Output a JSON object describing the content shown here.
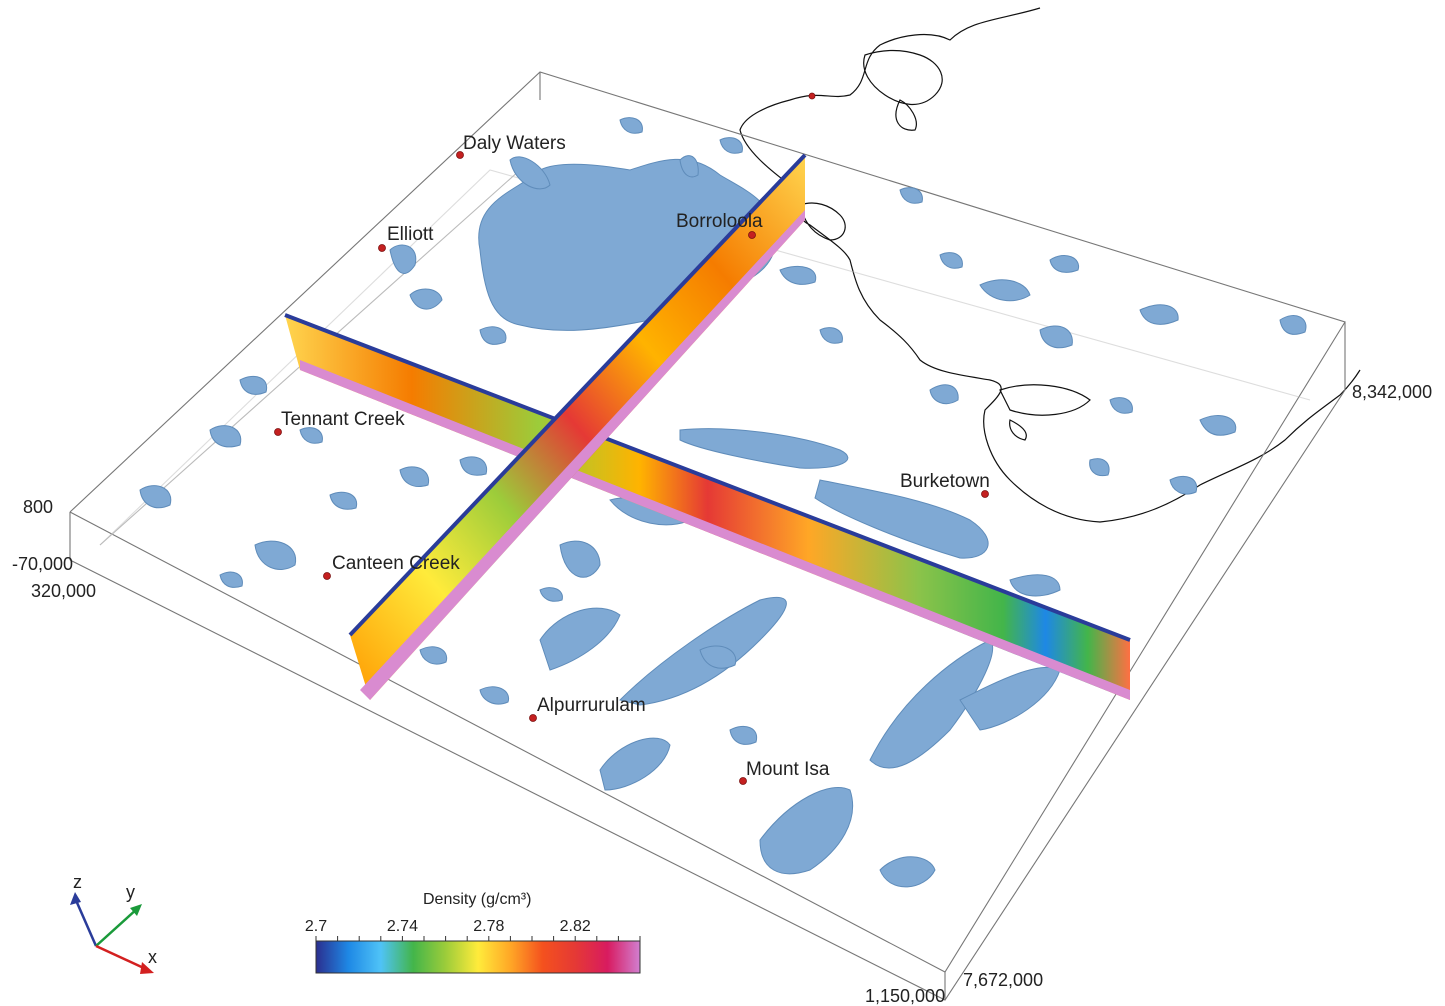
{
  "places": [
    {
      "name": "Daly Waters"
    },
    {
      "name": "Elliott"
    },
    {
      "name": "Borroloola"
    },
    {
      "name": "Tennant Creek"
    },
    {
      "name": "Burketown"
    },
    {
      "name": "Canteen Creek"
    },
    {
      "name": "Alpurrurulam"
    },
    {
      "name": "Mount Isa"
    }
  ],
  "axis_labels": {
    "z_top": "800",
    "z_bottom": "-70,000",
    "x_min": "320,000",
    "x_max": "1,150,000",
    "y_min": "7,672,000",
    "y_max": "8,342,000"
  },
  "triad": {
    "z": "z",
    "y": "y",
    "x": "x"
  },
  "colors": {
    "isosurface": "#7fa9d4",
    "isosurface_edge": "#5f8cba",
    "section_base": "#d98bd0",
    "section_top_line": "#2a3c9a",
    "town_marker": "#c42020"
  },
  "colorbar": {
    "title": "Density (g/cm³)",
    "ticks": [
      "2.7",
      "2.74",
      "2.78",
      "2.82"
    ],
    "min": 2.7,
    "max": 2.85,
    "colors": [
      "#2b2f8f",
      "#1e88e5",
      "#4fc3f7",
      "#43b54a",
      "#9ccc3a",
      "#ffeb3b",
      "#ffa726",
      "#f4511e",
      "#e53935",
      "#d81b60",
      "#d17fd0"
    ]
  }
}
